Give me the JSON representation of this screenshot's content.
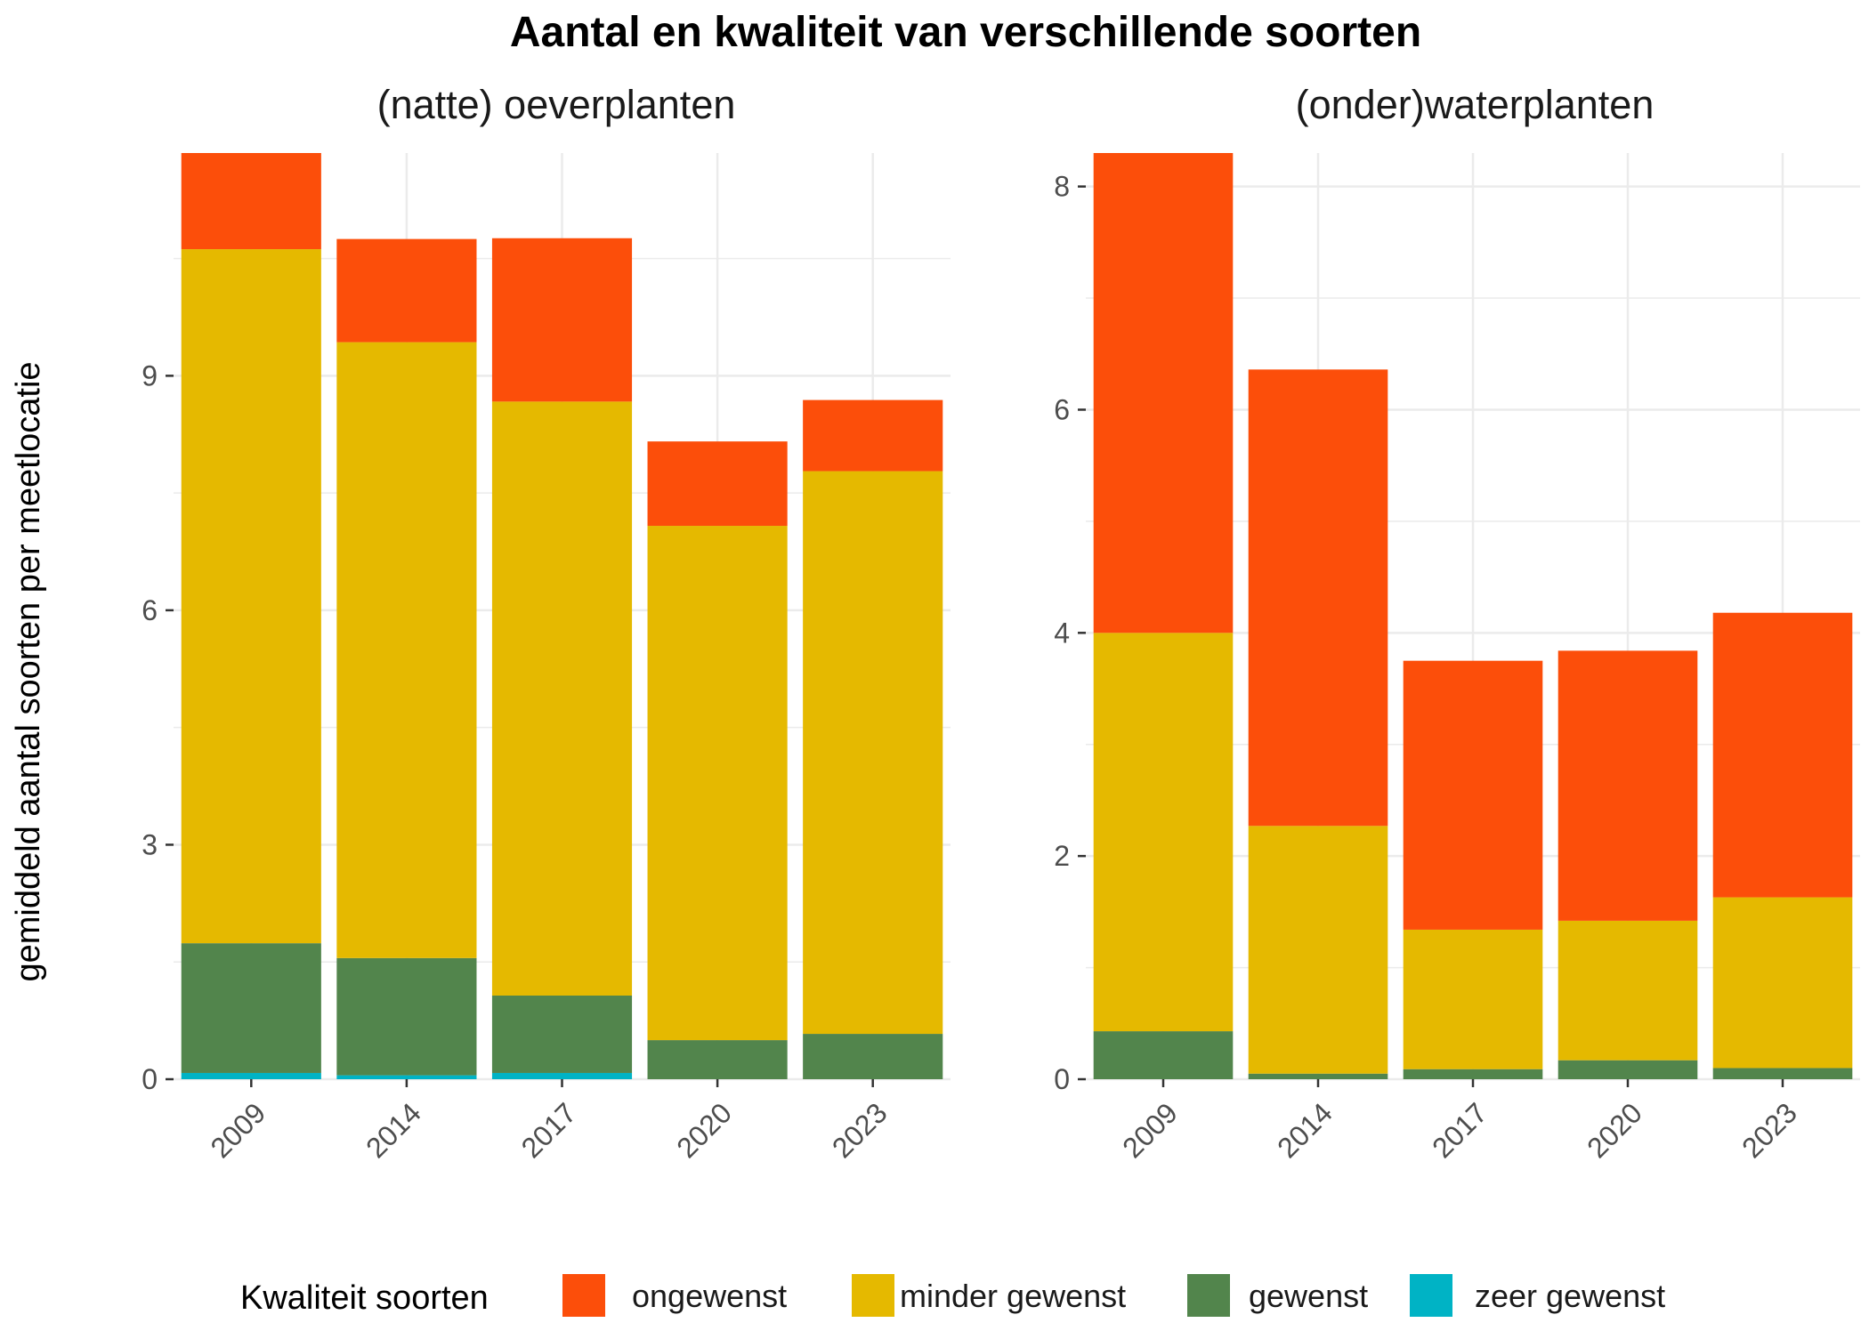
{
  "chart_data": {
    "type": "bar",
    "stacked": true,
    "title": "Aantal en kwaliteit van verschillende soorten",
    "ylabel": "gemiddeld aantal soorten per meetlocatie",
    "legend": {
      "title": "Kwaliteit soorten",
      "position": "bottom",
      "entries": [
        "ongewenst",
        "minder gewenst",
        "gewenst",
        "zeer gewenst"
      ]
    },
    "colors": {
      "ongewenst": "#FC4E0A",
      "minder gewenst": "#E5B900",
      "gewenst": "#52854C",
      "zeer gewenst": "#00B3C5",
      "grid": "#ebebeb",
      "axis_tick": "#333333"
    },
    "grid": true,
    "panels": [
      {
        "title": "(natte) oeverplanten",
        "categories": [
          "2009",
          "2014",
          "2017",
          "2020",
          "2023"
        ],
        "ylim": [
          0,
          11.85
        ],
        "yticks": [
          0,
          3,
          6,
          9
        ],
        "series": [
          {
            "name": "zeer gewenst",
            "values": [
              0.08,
              0.05,
              0.08,
              0.0,
              0.0
            ]
          },
          {
            "name": "gewenst",
            "values": [
              1.66,
              1.5,
              0.99,
              0.5,
              0.58
            ]
          },
          {
            "name": "minder gewenst",
            "values": [
              8.88,
              7.88,
              7.6,
              6.58,
              7.2
            ]
          },
          {
            "name": "ongewenst",
            "values": [
              1.23,
              1.32,
              2.09,
              1.08,
              0.91
            ]
          }
        ]
      },
      {
        "title": "(onder)waterplanten",
        "categories": [
          "2009",
          "2014",
          "2017",
          "2020",
          "2023"
        ],
        "ylim": [
          0,
          8.3
        ],
        "yticks": [
          0,
          2,
          4,
          6,
          8
        ],
        "series": [
          {
            "name": "zeer gewenst",
            "values": [
              0.0,
              0.0,
              0.0,
              0.0,
              0.0
            ]
          },
          {
            "name": "gewenst",
            "values": [
              0.43,
              0.05,
              0.09,
              0.17,
              0.1
            ]
          },
          {
            "name": "minder gewenst",
            "values": [
              3.57,
              2.22,
              1.25,
              1.25,
              1.53
            ]
          },
          {
            "name": "ongewenst",
            "values": [
              4.3,
              4.09,
              2.41,
              2.42,
              2.55
            ]
          }
        ]
      }
    ]
  }
}
